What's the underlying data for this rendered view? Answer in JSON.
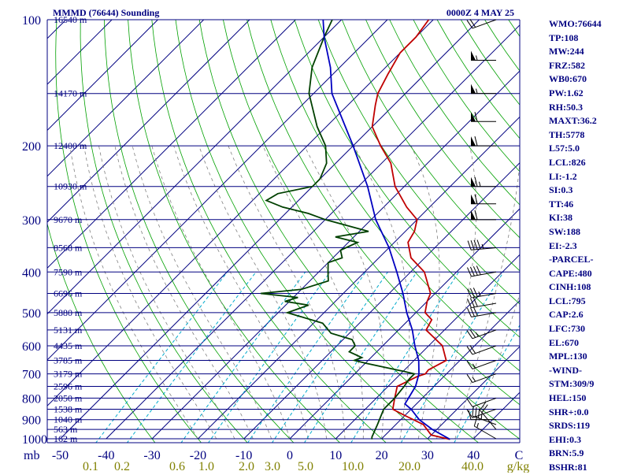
{
  "header": {
    "left": "MMMD (76644) Sounding",
    "right": "0000Z  4 MAY 25"
  },
  "indices": [
    "WMO:76644",
    "TP:108",
    "MW:244",
    "FRZ:582",
    "WB0:670",
    "PW:1.62",
    "RH:50.3",
    "MAXT:36.2",
    "TH:5778",
    "L57:5.0",
    "LCL:826",
    "LI:-1.2",
    "SI:0.3",
    "TT:46",
    "KI:38",
    "SW:188",
    "EI:-2.3",
    "-PARCEL-",
    "CAPE:480",
    "CINH:108",
    "LCL:795",
    "CAP:2.6",
    "LFC:730",
    "EL:670",
    "MPL:130",
    "-WIND-",
    "STM:309/9",
    "HEL:150",
    "SHR+:0.0",
    "SRDS:119",
    "EHI:0.3",
    "BRN:5.9",
    "BSHR:81"
  ],
  "colors": {
    "navy": "#000080",
    "temperature": "#c00000",
    "dewpoint": "#004000",
    "parcel": "#0000c0",
    "dry_adiabat": "#00a000",
    "moist_adiabat": "#808080",
    "mixing_ratio": "#00aacc",
    "mr_label": "#808000"
  },
  "chart_data": {
    "type": "line",
    "title": "MMMD (76644) Sounding",
    "skewt": true,
    "ylabel": "mb",
    "xlabel": "C",
    "ylim": [
      1000,
      100
    ],
    "xlim": [
      -50,
      50
    ],
    "pressure_ticks": [
      "100",
      "200",
      "300",
      "400",
      "500",
      "600",
      "700",
      "800",
      "900",
      "1000"
    ],
    "pressure_tick_values": [
      100,
      200,
      300,
      400,
      500,
      600,
      700,
      800,
      900,
      1000
    ],
    "temp_tick_labels": [
      "-50",
      "-40",
      "-30",
      "-20",
      "-10",
      "0",
      "10",
      "20",
      "30",
      "40"
    ],
    "temp_tick_values": [
      -50,
      -40,
      -30,
      -20,
      -10,
      0,
      10,
      20,
      30,
      40
    ],
    "mixing_ratio_labels": [
      "0.1",
      "0.2",
      "0.6",
      "1.0",
      "2.0",
      "3.0",
      "5.0",
      "10.0",
      "20.0",
      "40.0",
      "g/kg"
    ],
    "height_labels": [
      {
        "p": 100,
        "label": "16540 m"
      },
      {
        "p": 150,
        "label": "14170 m"
      },
      {
        "p": 200,
        "label": "12400 m"
      },
      {
        "p": 250,
        "label": "10930 m"
      },
      {
        "p": 300,
        "label": "9670 m"
      },
      {
        "p": 350,
        "label": "8568 m"
      },
      {
        "p": 400,
        "label": "7590 m"
      },
      {
        "p": 450,
        "label": "6696 m"
      },
      {
        "p": 500,
        "label": "5880 m"
      },
      {
        "p": 550,
        "label": "5131 m"
      },
      {
        "p": 600,
        "label": "4435 m"
      },
      {
        "p": 650,
        "label": "3785 m"
      },
      {
        "p": 700,
        "label": "3179 m"
      },
      {
        "p": 750,
        "label": "2596 m"
      },
      {
        "p": 800,
        "label": "2050 m"
      },
      {
        "p": 850,
        "label": "1538 m"
      },
      {
        "p": 900,
        "label": "1040 m"
      },
      {
        "p": 950,
        "label": "563 m"
      },
      {
        "p": 1000,
        "label": "162 m"
      }
    ],
    "series": [
      {
        "key": "temperature",
        "values": [
          [
            1003,
            35
          ],
          [
            980,
            30
          ],
          [
            925,
            26
          ],
          [
            880,
            20
          ],
          [
            850,
            16
          ],
          [
            800,
            14
          ],
          [
            750,
            12
          ],
          [
            710,
            14.2
          ],
          [
            700,
            15.4
          ],
          [
            685,
            15.2
          ],
          [
            650,
            17
          ],
          [
            600,
            13
          ],
          [
            550,
            6
          ],
          [
            520,
            5
          ],
          [
            500,
            2
          ],
          [
            470,
            0
          ],
          [
            450,
            -1
          ],
          [
            400,
            -7
          ],
          [
            370,
            -13
          ],
          [
            340,
            -17
          ],
          [
            320,
            -18
          ],
          [
            300,
            -20
          ],
          [
            280,
            -25
          ],
          [
            250,
            -32
          ],
          [
            220,
            -38
          ],
          [
            200,
            -44
          ],
          [
            180,
            -50
          ],
          [
            160,
            -54
          ],
          [
            150,
            -56
          ],
          [
            135,
            -58
          ],
          [
            120,
            -60
          ],
          [
            110,
            -60
          ],
          [
            100,
            -61
          ]
        ]
      },
      {
        "key": "dewpoint",
        "values": [
          [
            1003,
            18
          ],
          [
            990,
            17.5
          ],
          [
            925,
            16
          ],
          [
            850,
            14
          ],
          [
            800,
            14
          ],
          [
            750,
            13.5
          ],
          [
            720,
            13
          ],
          [
            700,
            13
          ],
          [
            690,
            10
          ],
          [
            660,
            0
          ],
          [
            650,
            -3
          ],
          [
            640,
            -2
          ],
          [
            620,
            -6
          ],
          [
            600,
            -6
          ],
          [
            580,
            -8
          ],
          [
            560,
            -14
          ],
          [
            530,
            -18
          ],
          [
            500,
            -28
          ],
          [
            480,
            -25
          ],
          [
            470,
            -31
          ],
          [
            460,
            -29
          ],
          [
            450,
            -38
          ],
          [
            440,
            -30
          ],
          [
            420,
            -26
          ],
          [
            400,
            -28
          ],
          [
            380,
            -30
          ],
          [
            370,
            -28
          ],
          [
            355,
            -30
          ],
          [
            340,
            -28
          ],
          [
            330,
            -34
          ],
          [
            320,
            -28
          ],
          [
            300,
            -40
          ],
          [
            290,
            -45
          ],
          [
            280,
            -52
          ],
          [
            270,
            -57
          ],
          [
            260,
            -56
          ],
          [
            250,
            -50
          ],
          [
            240,
            -50
          ],
          [
            220,
            -52
          ],
          [
            200,
            -56
          ],
          [
            180,
            -62
          ],
          [
            150,
            -71
          ],
          [
            130,
            -76
          ],
          [
            110,
            -80
          ],
          [
            100,
            -82
          ]
        ]
      },
      {
        "key": "parcel",
        "values": [
          [
            1003,
            35
          ],
          [
            950,
            29
          ],
          [
            900,
            24
          ],
          [
            850,
            20
          ],
          [
            826,
            17.5
          ],
          [
            800,
            17
          ],
          [
            750,
            16
          ],
          [
            700,
            14
          ],
          [
            650,
            11
          ],
          [
            600,
            7
          ],
          [
            550,
            3
          ],
          [
            500,
            -2
          ],
          [
            450,
            -7
          ],
          [
            400,
            -13
          ],
          [
            350,
            -20
          ],
          [
            300,
            -29
          ],
          [
            250,
            -38
          ],
          [
            200,
            -50
          ],
          [
            150,
            -66
          ],
          [
            130,
            -72
          ],
          [
            110,
            -80
          ],
          [
            100,
            -84
          ]
        ]
      }
    ],
    "wind_barbs_kt": [
      {
        "p": 1000,
        "dir": 300,
        "spd": 15
      },
      {
        "p": 950,
        "dir": 320,
        "spd": 20
      },
      {
        "p": 925,
        "dir": 290,
        "spd": 35
      },
      {
        "p": 900,
        "dir": 270,
        "spd": 10
      },
      {
        "p": 850,
        "dir": 250,
        "spd": 10
      },
      {
        "p": 800,
        "dir": 250,
        "spd": 10
      },
      {
        "p": 700,
        "dir": 250,
        "spd": 15
      },
      {
        "p": 650,
        "dir": 250,
        "spd": 15
      },
      {
        "p": 600,
        "dir": 250,
        "spd": 20
      },
      {
        "p": 550,
        "dir": 250,
        "spd": 25
      },
      {
        "p": 500,
        "dir": 260,
        "spd": 30
      },
      {
        "p": 475,
        "dir": 260,
        "spd": 30
      },
      {
        "p": 450,
        "dir": 260,
        "spd": 35
      },
      {
        "p": 400,
        "dir": 260,
        "spd": 40
      },
      {
        "p": 350,
        "dir": 265,
        "spd": 45
      },
      {
        "p": 300,
        "dir": 270,
        "spd": 60
      },
      {
        "p": 275,
        "dir": 270,
        "spd": 60
      },
      {
        "p": 250,
        "dir": 270,
        "spd": 65
      },
      {
        "p": 200,
        "dir": 270,
        "spd": 60
      },
      {
        "p": 175,
        "dir": 270,
        "spd": 60
      },
      {
        "p": 150,
        "dir": 270,
        "spd": 55
      },
      {
        "p": 125,
        "dir": 270,
        "spd": 55
      },
      {
        "p": 100,
        "dir": 250,
        "spd": 20
      }
    ]
  }
}
